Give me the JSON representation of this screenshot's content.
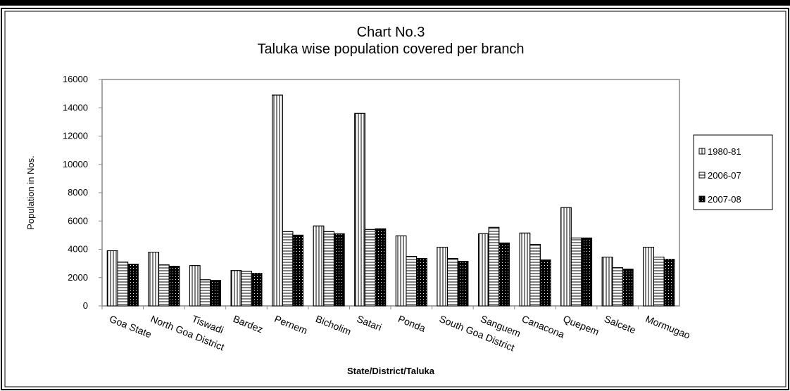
{
  "chart_data": {
    "type": "bar",
    "title": "Chart No.3",
    "subtitle": "Taluka wise population covered per branch",
    "x_label": "State/District/Taluka",
    "y_label": "Population in Nos.",
    "categories": [
      "Goa State",
      "North Goa District",
      "Tiswadi",
      "Bardez",
      "Pernem",
      "Bicholim",
      "Satari",
      "Ponda",
      "South Goa District",
      "Sanguem",
      "Canacona",
      "Quepem",
      "Salcete",
      "Mormugao"
    ],
    "series": [
      {
        "name": "1980-81",
        "color": "#ffffff",
        "values": [
          3900,
          3800,
          2850,
          2500,
          14900,
          5650,
          13600,
          4950,
          4150,
          5100,
          5150,
          6950,
          3450,
          4150
        ]
      },
      {
        "name": "2006-07",
        "color": "#ffffff",
        "values": [
          3100,
          2900,
          1850,
          2450,
          5250,
          5250,
          5400,
          3500,
          3350,
          5550,
          4350,
          4800,
          2700,
          3450
        ]
      },
      {
        "name": "2007-08",
        "color": "#000000",
        "values": [
          2950,
          2800,
          1800,
          2300,
          5000,
          5100,
          5450,
          3350,
          3150,
          4450,
          3250,
          4800,
          2600,
          3300
        ]
      }
    ],
    "ylim": [
      0,
      16000
    ],
    "yticks": [
      0,
      2000,
      4000,
      6000,
      8000,
      10000,
      12000,
      14000,
      16000
    ],
    "grid": false
  }
}
